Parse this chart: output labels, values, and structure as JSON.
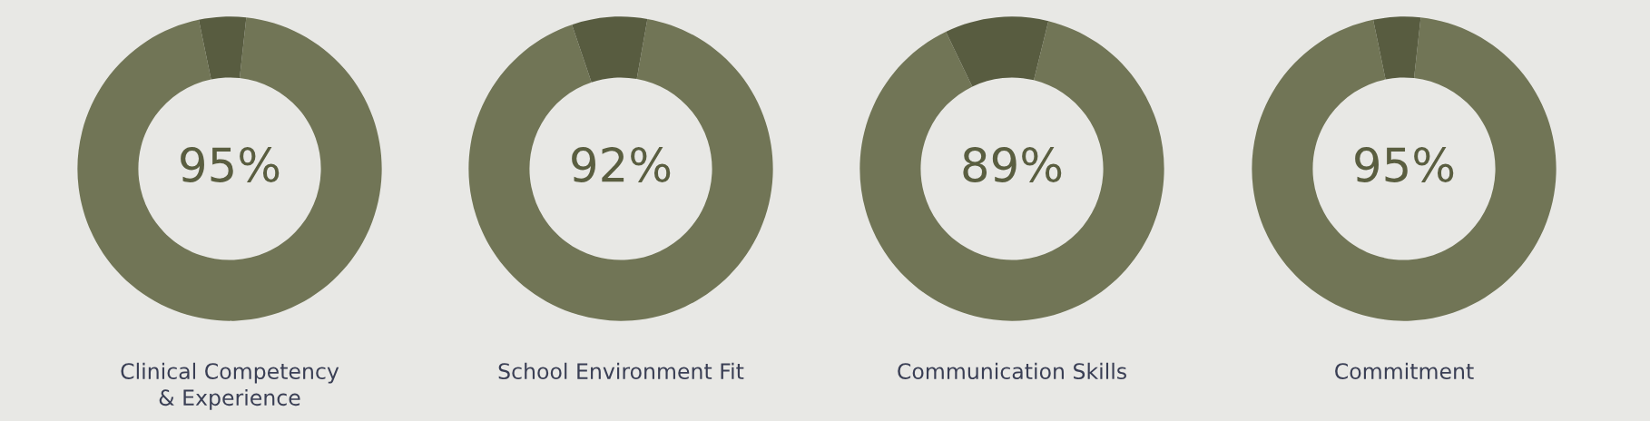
{
  "chart_data": [
    {
      "type": "donut",
      "title": "Clinical Competency\n& Experience",
      "categories": [
        null,
        null
      ],
      "values": [
        95,
        5
      ],
      "colors": [
        "#717556",
        "#585c40"
      ],
      "value_labels": [
        "95%",
        null
      ]
    },
    {
      "type": "donut",
      "title": "School Environment Fit",
      "categories": [
        null,
        null
      ],
      "values": [
        92,
        8
      ],
      "colors": [
        "#717556",
        "#585c40"
      ],
      "value_labels": [
        "92%",
        null
      ]
    },
    {
      "type": "donut",
      "title": "Communication Skills",
      "categories": [
        null,
        null
      ],
      "values": [
        89,
        11
      ],
      "colors": [
        "#717556",
        "#585c40"
      ],
      "value_labels": [
        "89%",
        null
      ]
    },
    {
      "type": "donut",
      "title": "Commitment",
      "categories": [
        null,
        null
      ],
      "values": [
        95,
        5
      ],
      "colors": [
        "#717556",
        "#585c40"
      ],
      "value_labels": [
        "95%",
        null
      ]
    }
  ]
}
